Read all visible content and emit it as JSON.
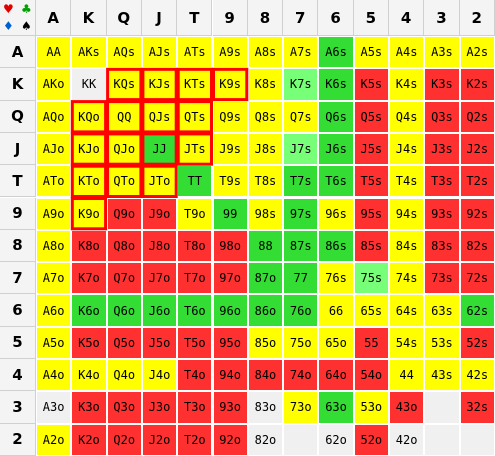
{
  "ranks": [
    "A",
    "K",
    "Q",
    "J",
    "T",
    "9",
    "8",
    "7",
    "6",
    "5",
    "4",
    "3",
    "2"
  ],
  "corner_suits": [
    {
      "glyph": "♥",
      "color": "#e00000"
    },
    {
      "glyph": "♣",
      "color": "#00a000"
    },
    {
      "glyph": "♦",
      "color": "#0060d0"
    },
    {
      "glyph": "♠",
      "color": "#000000"
    }
  ],
  "colors": {
    "Y": "#ffff00",
    "R": "#ff3030",
    "G": "#33dd33",
    "L": "#77ff77",
    "D": "#22aa22",
    "W": "#f0f0f0",
    "highlight": "#ff0000"
  },
  "grid": [
    [
      {
        "t": "AA",
        "c": "Y"
      },
      {
        "t": "AKs",
        "c": "Y"
      },
      {
        "t": "AQs",
        "c": "Y"
      },
      {
        "t": "AJs",
        "c": "Y"
      },
      {
        "t": "ATs",
        "c": "Y"
      },
      {
        "t": "A9s",
        "c": "Y"
      },
      {
        "t": "A8s",
        "c": "Y"
      },
      {
        "t": "A7s",
        "c": "Y"
      },
      {
        "t": "A6s",
        "c": "G"
      },
      {
        "t": "A5s",
        "c": "Y"
      },
      {
        "t": "A4s",
        "c": "Y"
      },
      {
        "t": "A3s",
        "c": "Y"
      },
      {
        "t": "A2s",
        "c": "Y"
      }
    ],
    [
      {
        "t": "AKo",
        "c": "Y"
      },
      {
        "t": "KK",
        "c": "W"
      },
      {
        "t": "KQs",
        "c": "Y"
      },
      {
        "t": "KJs",
        "c": "Y"
      },
      {
        "t": "KTs",
        "c": "Y"
      },
      {
        "t": "K9s",
        "c": "Y"
      },
      {
        "t": "K8s",
        "c": "Y"
      },
      {
        "t": "K7s",
        "c": "L"
      },
      {
        "t": "K6s",
        "c": "G"
      },
      {
        "t": "K5s",
        "c": "R"
      },
      {
        "t": "K4s",
        "c": "Y"
      },
      {
        "t": "K3s",
        "c": "R"
      },
      {
        "t": "K2s",
        "c": "R"
      }
    ],
    [
      {
        "t": "AQo",
        "c": "Y"
      },
      {
        "t": "KQo",
        "c": "Y"
      },
      {
        "t": "QQ",
        "c": "Y"
      },
      {
        "t": "QJs",
        "c": "Y"
      },
      {
        "t": "QTs",
        "c": "Y"
      },
      {
        "t": "Q9s",
        "c": "Y"
      },
      {
        "t": "Q8s",
        "c": "Y"
      },
      {
        "t": "Q7s",
        "c": "Y"
      },
      {
        "t": "Q6s",
        "c": "G"
      },
      {
        "t": "Q5s",
        "c": "R"
      },
      {
        "t": "Q4s",
        "c": "Y"
      },
      {
        "t": "Q3s",
        "c": "R"
      },
      {
        "t": "Q2s",
        "c": "R"
      }
    ],
    [
      {
        "t": "AJo",
        "c": "Y"
      },
      {
        "t": "KJo",
        "c": "Y"
      },
      {
        "t": "QJo",
        "c": "Y"
      },
      {
        "t": "JJ",
        "c": "G"
      },
      {
        "t": "JTs",
        "c": "Y"
      },
      {
        "t": "J9s",
        "c": "Y"
      },
      {
        "t": "J8s",
        "c": "Y"
      },
      {
        "t": "J7s",
        "c": "L"
      },
      {
        "t": "J6s",
        "c": "G"
      },
      {
        "t": "J5s",
        "c": "R"
      },
      {
        "t": "J4s",
        "c": "Y"
      },
      {
        "t": "J3s",
        "c": "R"
      },
      {
        "t": "J2s",
        "c": "R"
      }
    ],
    [
      {
        "t": "ATo",
        "c": "Y"
      },
      {
        "t": "KTo",
        "c": "Y"
      },
      {
        "t": "QTo",
        "c": "Y"
      },
      {
        "t": "JTo",
        "c": "Y"
      },
      {
        "t": "TT",
        "c": "G"
      },
      {
        "t": "T9s",
        "c": "Y"
      },
      {
        "t": "T8s",
        "c": "Y"
      },
      {
        "t": "T7s",
        "c": "G"
      },
      {
        "t": "T6s",
        "c": "G"
      },
      {
        "t": "T5s",
        "c": "R"
      },
      {
        "t": "T4s",
        "c": "Y"
      },
      {
        "t": "T3s",
        "c": "R"
      },
      {
        "t": "T2s",
        "c": "R"
      }
    ],
    [
      {
        "t": "A9o",
        "c": "Y"
      },
      {
        "t": "K9o",
        "c": "Y"
      },
      {
        "t": "Q9o",
        "c": "R"
      },
      {
        "t": "J9o",
        "c": "R"
      },
      {
        "t": "T9o",
        "c": "Y"
      },
      {
        "t": "99",
        "c": "G"
      },
      {
        "t": "98s",
        "c": "Y"
      },
      {
        "t": "97s",
        "c": "G"
      },
      {
        "t": "96s",
        "c": "Y"
      },
      {
        "t": "95s",
        "c": "R"
      },
      {
        "t": "94s",
        "c": "Y"
      },
      {
        "t": "93s",
        "c": "R"
      },
      {
        "t": "92s",
        "c": "R"
      }
    ],
    [
      {
        "t": "A8o",
        "c": "Y"
      },
      {
        "t": "K8o",
        "c": "R"
      },
      {
        "t": "Q8o",
        "c": "R"
      },
      {
        "t": "J8o",
        "c": "R"
      },
      {
        "t": "T8o",
        "c": "R"
      },
      {
        "t": "98o",
        "c": "R"
      },
      {
        "t": "88",
        "c": "G"
      },
      {
        "t": "87s",
        "c": "G"
      },
      {
        "t": "86s",
        "c": "G"
      },
      {
        "t": "85s",
        "c": "R"
      },
      {
        "t": "84s",
        "c": "Y"
      },
      {
        "t": "83s",
        "c": "R"
      },
      {
        "t": "82s",
        "c": "R"
      }
    ],
    [
      {
        "t": "A7o",
        "c": "Y"
      },
      {
        "t": "K7o",
        "c": "R"
      },
      {
        "t": "Q7o",
        "c": "R"
      },
      {
        "t": "J7o",
        "c": "R"
      },
      {
        "t": "T7o",
        "c": "R"
      },
      {
        "t": "97o",
        "c": "R"
      },
      {
        "t": "87o",
        "c": "G"
      },
      {
        "t": "77",
        "c": "G"
      },
      {
        "t": "76s",
        "c": "Y"
      },
      {
        "t": "75s",
        "c": "L"
      },
      {
        "t": "74s",
        "c": "Y"
      },
      {
        "t": "73s",
        "c": "R"
      },
      {
        "t": "72s",
        "c": "R"
      }
    ],
    [
      {
        "t": "A6o",
        "c": "Y"
      },
      {
        "t": "K6o",
        "c": "G"
      },
      {
        "t": "Q6o",
        "c": "G"
      },
      {
        "t": "J6o",
        "c": "G"
      },
      {
        "t": "T6o",
        "c": "G"
      },
      {
        "t": "96o",
        "c": "G"
      },
      {
        "t": "86o",
        "c": "G"
      },
      {
        "t": "76o",
        "c": "G"
      },
      {
        "t": "66",
        "c": "Y"
      },
      {
        "t": "65s",
        "c": "Y"
      },
      {
        "t": "64s",
        "c": "Y"
      },
      {
        "t": "63s",
        "c": "Y"
      },
      {
        "t": "62s",
        "c": "G"
      }
    ],
    [
      {
        "t": "A5o",
        "c": "Y"
      },
      {
        "t": "K5o",
        "c": "R"
      },
      {
        "t": "Q5o",
        "c": "R"
      },
      {
        "t": "J5o",
        "c": "R"
      },
      {
        "t": "T5o",
        "c": "R"
      },
      {
        "t": "95o",
        "c": "R"
      },
      {
        "t": "85o",
        "c": "Y"
      },
      {
        "t": "75o",
        "c": "Y"
      },
      {
        "t": "65o",
        "c": "Y"
      },
      {
        "t": "55",
        "c": "R"
      },
      {
        "t": "54s",
        "c": "Y"
      },
      {
        "t": "53s",
        "c": "Y"
      },
      {
        "t": "52s",
        "c": "R"
      }
    ],
    [
      {
        "t": "A4o",
        "c": "Y"
      },
      {
        "t": "K4o",
        "c": "Y"
      },
      {
        "t": "Q4o",
        "c": "Y"
      },
      {
        "t": "J4o",
        "c": "Y"
      },
      {
        "t": "T4o",
        "c": "R"
      },
      {
        "t": "94o",
        "c": "R"
      },
      {
        "t": "84o",
        "c": "R"
      },
      {
        "t": "74o",
        "c": "R"
      },
      {
        "t": "64o",
        "c": "R"
      },
      {
        "t": "54o",
        "c": "R"
      },
      {
        "t": "44",
        "c": "Y"
      },
      {
        "t": "43s",
        "c": "Y"
      },
      {
        "t": "42s",
        "c": "Y"
      }
    ],
    [
      {
        "t": "A3o",
        "c": "W"
      },
      {
        "t": "K3o",
        "c": "R"
      },
      {
        "t": "Q3o",
        "c": "R"
      },
      {
        "t": "J3o",
        "c": "R"
      },
      {
        "t": "T3o",
        "c": "R"
      },
      {
        "t": "93o",
        "c": "R"
      },
      {
        "t": "83o",
        "c": "W"
      },
      {
        "t": "73o",
        "c": "Y"
      },
      {
        "t": "63o",
        "c": "G"
      },
      {
        "t": "53o",
        "c": "Y"
      },
      {
        "t": "43o",
        "c": "R"
      },
      {
        "t": "",
        "c": "W"
      },
      {
        "t": "32s",
        "c": "R"
      }
    ],
    [
      {
        "t": "A2o",
        "c": "Y"
      },
      {
        "t": "K2o",
        "c": "R"
      },
      {
        "t": "Q2o",
        "c": "R"
      },
      {
        "t": "J2o",
        "c": "R"
      },
      {
        "t": "T2o",
        "c": "R"
      },
      {
        "t": "92o",
        "c": "R"
      },
      {
        "t": "82o",
        "c": "W"
      },
      {
        "t": "",
        "c": "W"
      },
      {
        "t": "62o",
        "c": "W"
      },
      {
        "t": "52o",
        "c": "R"
      },
      {
        "t": "42o",
        "c": "W"
      },
      {
        "t": "",
        "c": "W"
      },
      {
        "t": "",
        "c": "W"
      }
    ]
  ],
  "highlighted": [
    "KQs",
    "KJs",
    "KTs",
    "K9s",
    "KQo",
    "QQ",
    "QJs",
    "QTs",
    "KJo",
    "QJo",
    "JJ",
    "JTs",
    "KTo",
    "QTo",
    "JTo",
    "K9o"
  ]
}
